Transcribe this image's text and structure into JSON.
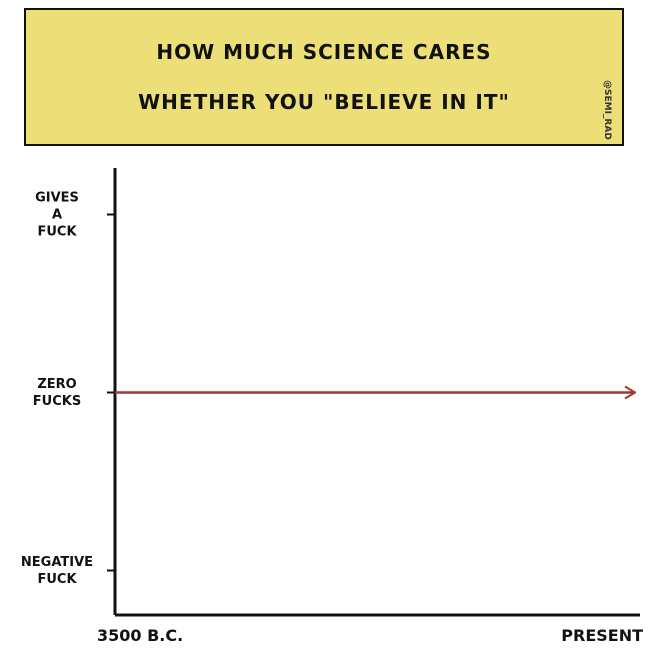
{
  "chart_data": {
    "type": "line",
    "title": [
      "HOW MUCH SCIENCE CARES",
      "WHETHER YOU \"BELIEVE IN IT\""
    ],
    "watermark": "@SEMI_RAD",
    "categories": [
      "3500 B.C.",
      "PRESENT"
    ],
    "series": [
      {
        "color": "#a3392e",
        "values": [
          0,
          0
        ]
      }
    ],
    "ylim": [
      -1.25,
      1.25
    ],
    "yticks": [
      {
        "value": 1,
        "label": "GIVES A FUCK"
      },
      {
        "value": 0,
        "label": "ZERO FUCKS"
      },
      {
        "value": -1,
        "label": "NEGATIVE FUCK"
      }
    ],
    "title_color": "#ecdf78"
  }
}
